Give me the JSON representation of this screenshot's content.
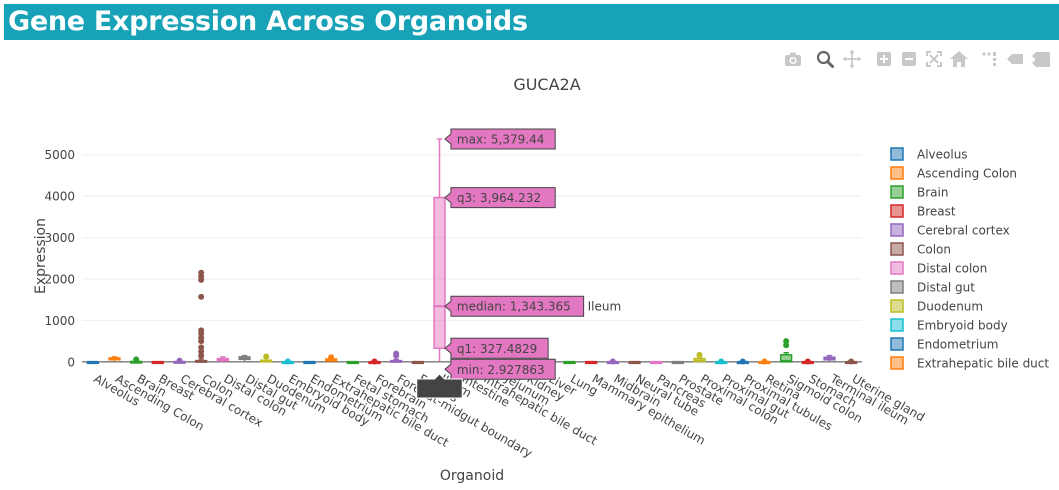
{
  "header": {
    "title": "Gene Expression Across Organoids"
  },
  "modebar": {
    "buttons": [
      "camera-icon",
      "zoom-icon",
      "pan-icon",
      "zoom-in-icon",
      "zoom-out-icon",
      "autoscale-icon",
      "reset-axes-icon",
      "spike-lines-icon",
      "hover-closest-icon",
      "hover-compare-icon"
    ]
  },
  "colors": {
    "header_bg": "#17a2b8",
    "highlight": "#e377c2"
  },
  "chart_data": {
    "type": "box",
    "title": "GUCA2A",
    "xlabel": "Organoid",
    "ylabel": "Expression",
    "ylim": [
      -100,
      5500
    ],
    "yticks": [
      0,
      1000,
      2000,
      3000,
      4000,
      5000
    ],
    "ytick_labels": [
      "0",
      "1000",
      "2000",
      "3000",
      "4000",
      "5000"
    ],
    "grid": true,
    "legend_position": "right",
    "categories": [
      "Alveolus",
      "Ascending Colon",
      "Brain",
      "Breast",
      "Cerebral cortex",
      "Colon",
      "Distal colon",
      "Distal gut",
      "Duodenum",
      "Embryoid body",
      "Endometrium",
      "Extrahepatic bile duct",
      "Fetal stomach",
      "Forebrain",
      "Foregut-midgut boundary",
      "Fundus",
      "Ileum",
      "Intestine",
      "Intrahepatic bile duct",
      "Jejunum",
      "Kidney",
      "Liver",
      "Lung",
      "Mammary epithelium",
      "Midbrain",
      "Neural tube",
      "Pancreas",
      "Prostate",
      "Proximal colon",
      "Proximal gut",
      "Proximal tubules",
      "Retina",
      "Sigmoid colon",
      "Stomach",
      "Terminal ileum",
      "Uterine gland"
    ],
    "colors": [
      "#1f77b4",
      "#ff7f0e",
      "#2ca02c",
      "#d62728",
      "#9467bd",
      "#8c564b",
      "#e377c2",
      "#7f7f7f",
      "#bcbd22",
      "#17becf",
      "#1f77b4",
      "#ff7f0e",
      "#2ca02c",
      "#d62728",
      "#9467bd",
      "#8c564b",
      "#e377c2",
      "#7f7f7f",
      "#bcbd22",
      "#17becf",
      "#1f77b4",
      "#ff7f0e",
      "#2ca02c",
      "#d62728",
      "#9467bd",
      "#8c564b",
      "#e377c2",
      "#7f7f7f",
      "#bcbd22",
      "#17becf",
      "#1f77b4",
      "#ff7f0e",
      "#2ca02c",
      "#d62728",
      "#9467bd",
      "#8c564b"
    ],
    "boxes": [
      {
        "min": 0,
        "q1": 0,
        "median": 0,
        "q3": 0,
        "max": 0,
        "outliers": []
      },
      {
        "min": 20,
        "q1": 50,
        "median": 70,
        "q3": 95,
        "max": 120,
        "outliers": []
      },
      {
        "min": 0,
        "q1": 0,
        "median": 0,
        "q3": 10,
        "max": 40,
        "outliers": [
          60
        ]
      },
      {
        "min": 0,
        "q1": 0,
        "median": 0,
        "q3": 0,
        "max": 0,
        "outliers": []
      },
      {
        "min": 0,
        "q1": 0,
        "median": 0,
        "q3": 5,
        "max": 15,
        "outliers": [
          30
        ]
      },
      {
        "min": 0,
        "q1": 0,
        "median": 5,
        "q3": 30,
        "max": 70,
        "outliers": [
          150,
          250,
          350,
          500,
          580,
          680,
          760,
          1570,
          1980,
          2060,
          2150
        ]
      },
      {
        "min": 0,
        "q1": 20,
        "median": 50,
        "q3": 80,
        "max": 120,
        "outliers": []
      },
      {
        "min": 20,
        "q1": 60,
        "median": 90,
        "q3": 120,
        "max": 150,
        "outliers": []
      },
      {
        "min": 0,
        "q1": 0,
        "median": 10,
        "q3": 40,
        "max": 100,
        "outliers": [
          130
        ]
      },
      {
        "min": 0,
        "q1": 0,
        "median": 0,
        "q3": 0,
        "max": 0,
        "outliers": [
          10
        ]
      },
      {
        "min": 0,
        "q1": 0,
        "median": 0,
        "q3": 0,
        "max": 0,
        "outliers": []
      },
      {
        "min": 0,
        "q1": 20,
        "median": 50,
        "q3": 70,
        "max": 90,
        "outliers": [
          110
        ]
      },
      {
        "min": 0,
        "q1": 0,
        "median": 0,
        "q3": 0,
        "max": 0,
        "outliers": []
      },
      {
        "min": 0,
        "q1": 0,
        "median": 0,
        "q3": 0,
        "max": 0,
        "outliers": [
          10
        ]
      },
      {
        "min": 0,
        "q1": 0,
        "median": 10,
        "q3": 30,
        "max": 60,
        "outliers": [
          150,
          200
        ]
      },
      {
        "min": 0,
        "q1": 0,
        "median": 0,
        "q3": 0,
        "max": 0,
        "outliers": []
      },
      {
        "min": 2.927863,
        "q1": 327.4829,
        "median": 1343.365,
        "q3": 3964.232,
        "max": 5379.44,
        "outliers": []
      },
      {
        "min": 0,
        "q1": 0,
        "median": 0,
        "q3": 0,
        "max": 0,
        "outliers": []
      },
      {
        "min": 0,
        "q1": 0,
        "median": 0,
        "q3": 0,
        "max": 0,
        "outliers": []
      },
      {
        "min": 0,
        "q1": 0,
        "median": 0,
        "q3": 0,
        "max": 0,
        "outliers": []
      },
      {
        "min": 0,
        "q1": 0,
        "median": 0,
        "q3": 0,
        "max": 0,
        "outliers": []
      },
      {
        "min": 0,
        "q1": 0,
        "median": 0,
        "q3": 0,
        "max": 0,
        "outliers": [
          10
        ]
      },
      {
        "min": 0,
        "q1": 0,
        "median": 0,
        "q3": 0,
        "max": 0,
        "outliers": []
      },
      {
        "min": 0,
        "q1": 0,
        "median": 0,
        "q3": 0,
        "max": 0,
        "outliers": []
      },
      {
        "min": 0,
        "q1": 0,
        "median": 0,
        "q3": 0,
        "max": 0,
        "outliers": [
          10
        ]
      },
      {
        "min": 0,
        "q1": 0,
        "median": 0,
        "q3": 0,
        "max": 0,
        "outliers": []
      },
      {
        "min": 0,
        "q1": 0,
        "median": 0,
        "q3": 0,
        "max": 0,
        "outliers": []
      },
      {
        "min": 0,
        "q1": 0,
        "median": 0,
        "q3": 0,
        "max": 0,
        "outliers": []
      },
      {
        "min": 0,
        "q1": 10,
        "median": 30,
        "q3": 80,
        "max": 120,
        "outliers": [
          170
        ]
      },
      {
        "min": 0,
        "q1": 0,
        "median": 0,
        "q3": 0,
        "max": 0,
        "outliers": [
          10
        ]
      },
      {
        "min": 0,
        "q1": 0,
        "median": 0,
        "q3": 0,
        "max": 0,
        "outliers": [
          10
        ]
      },
      {
        "min": 0,
        "q1": 0,
        "median": 0,
        "q3": 0,
        "max": 0,
        "outliers": [
          10
        ]
      },
      {
        "min": 0,
        "q1": 0,
        "median": 20,
        "q3": 170,
        "max": 220,
        "outliers": [
          400,
          500
        ]
      },
      {
        "min": 0,
        "q1": 0,
        "median": 0,
        "q3": 0,
        "max": 0,
        "outliers": [
          10
        ]
      },
      {
        "min": 20,
        "q1": 50,
        "median": 80,
        "q3": 110,
        "max": 150,
        "outliers": []
      },
      {
        "min": 0,
        "q1": 0,
        "median": 0,
        "q3": 0,
        "max": 0,
        "outliers": [
          10
        ]
      }
    ],
    "legend_entries": [
      "Alveolus",
      "Ascending Colon",
      "Brain",
      "Breast",
      "Cerebral cortex",
      "Colon",
      "Distal colon",
      "Distal gut",
      "Duodenum",
      "Embryoid body",
      "Endometrium",
      "Extrahepatic bile duct"
    ],
    "hover": {
      "category": "Ileum",
      "trace_label": "Ileum",
      "labels": {
        "max": "max: 5,379.44",
        "q3": "q3: 3,964.232",
        "median": "median: 1,343.365",
        "q1": "q1: 327.4829",
        "min": "min: 2.927863"
      }
    }
  }
}
